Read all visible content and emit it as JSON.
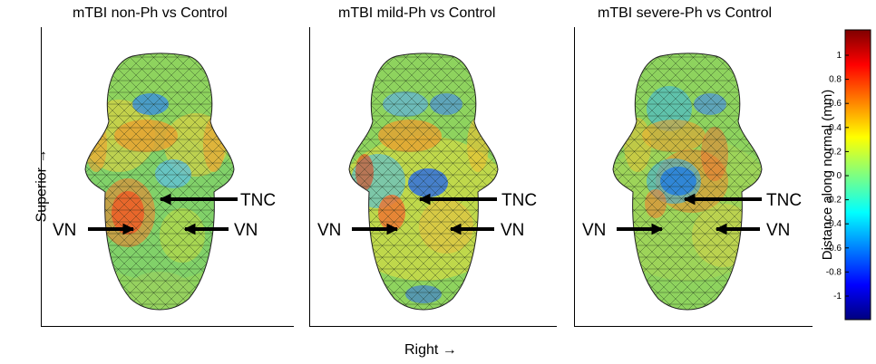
{
  "panels": [
    {
      "title": "mTBI non-Ph vs Control",
      "labels": {
        "tnc": "TNC",
        "vn_left": "VN",
        "vn_right": "VN"
      }
    },
    {
      "title": "mTBI mild-Ph vs Control",
      "labels": {
        "tnc": "TNC",
        "vn_left": "VN",
        "vn_right": "VN"
      }
    },
    {
      "title": "mTBI severe-Ph vs Control",
      "labels": {
        "tnc": "TNC",
        "vn_left": "VN",
        "vn_right": "VN"
      }
    }
  ],
  "axes": {
    "y_label": "Superior →",
    "x_label": "Right  →"
  },
  "colorbar": {
    "label": "Distance along normal (mm)",
    "ticks": [
      "1",
      "0.8",
      "0.6",
      "0.4",
      "0.2",
      "0",
      "-0.2",
      "-0.4",
      "-0.6",
      "-0.8",
      "-1"
    ],
    "colors": [
      "#7f0000",
      "#ff0000",
      "#ffff00",
      "#00ffff",
      "#0000ff",
      "#00007f"
    ]
  }
}
